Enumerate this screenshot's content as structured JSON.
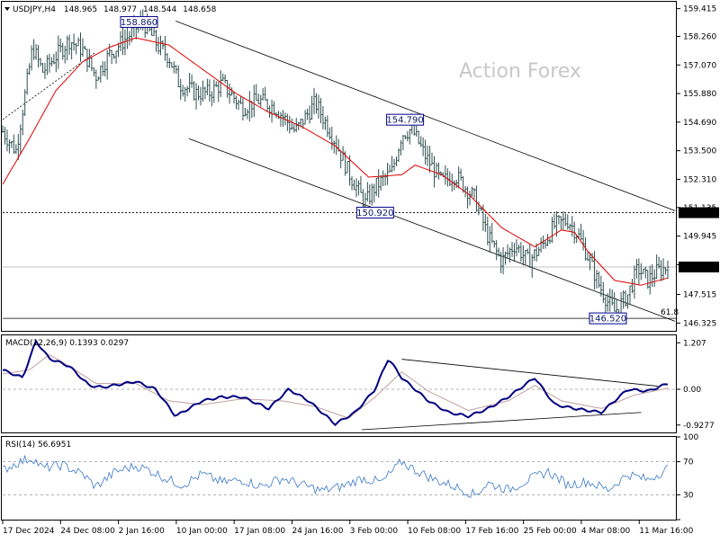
{
  "chart_data": {
    "type": "candlestick",
    "title": "USDJPY,H4",
    "ohlc_header": {
      "symbol": "USDJPY,H4",
      "values": [
        "148.965",
        "148.977",
        "148.544",
        "148.658"
      ]
    },
    "watermark": "Action Forex",
    "price_axis": {
      "ylim": [
        146.0,
        159.7
      ],
      "ticks": [
        "159.415",
        "158.260",
        "157.070",
        "155.880",
        "154.690",
        "153.500",
        "152.310",
        "151.135",
        "149.945",
        "148.755",
        "147.515",
        "146.325"
      ],
      "tick_values": [
        159.415,
        158.26,
        157.07,
        155.88,
        154.69,
        153.5,
        152.31,
        151.135,
        149.945,
        148.755,
        147.515,
        146.325
      ]
    },
    "current_price": {
      "label": "148.658",
      "value": 148.658
    },
    "level_150920": {
      "label": "150.920",
      "value": 150.92
    },
    "level_146520": {
      "value": 146.52
    },
    "fib_label": "61.8",
    "annotations": [
      {
        "label": "158.860",
        "value": 158.86,
        "t": 0.205
      },
      {
        "label": "154.790",
        "value": 154.79,
        "t": 0.605
      },
      {
        "label": "150.920",
        "value": 150.92,
        "t": 0.56
      },
      {
        "label": "146.520",
        "value": 146.52,
        "t": 0.91
      }
    ],
    "channel_upper": {
      "t": [
        0.26,
        1.0
      ],
      "v": [
        158.9,
        151.0
      ]
    },
    "channel_lower": {
      "t": [
        0.28,
        1.0
      ],
      "v": [
        154.0,
        146.4
      ]
    },
    "trendline_early": {
      "t": [
        0.0,
        0.14
      ],
      "v": [
        154.8,
        157.6
      ]
    },
    "price_keypoints": {
      "t": [
        0.0,
        0.02,
        0.045,
        0.06,
        0.085,
        0.1,
        0.12,
        0.14,
        0.16,
        0.19,
        0.21,
        0.235,
        0.25,
        0.265,
        0.29,
        0.31,
        0.33,
        0.36,
        0.385,
        0.41,
        0.44,
        0.47,
        0.5,
        0.52,
        0.545,
        0.56,
        0.585,
        0.6,
        0.615,
        0.635,
        0.66,
        0.68,
        0.71,
        0.73,
        0.75,
        0.77,
        0.79,
        0.81,
        0.83,
        0.85,
        0.865,
        0.88,
        0.895,
        0.91,
        0.92,
        0.94,
        0.955,
        0.97,
        0.985,
        1.0
      ],
      "v": [
        154.3,
        153.5,
        157.8,
        156.8,
        157.6,
        158.1,
        157.7,
        156.6,
        157.5,
        158.3,
        158.9,
        157.8,
        157.4,
        156.3,
        155.9,
        155.9,
        156.3,
        155.3,
        155.6,
        155.3,
        154.3,
        155.5,
        153.9,
        152.6,
        151.3,
        152.0,
        152.6,
        154.2,
        154.4,
        153.3,
        152.2,
        152.5,
        151.5,
        149.9,
        148.9,
        149.6,
        148.9,
        149.5,
        150.4,
        150.6,
        150.0,
        149.1,
        148.0,
        147.2,
        146.8,
        147.5,
        148.6,
        148.1,
        148.5,
        148.658
      ]
    },
    "ma_keypoints": {
      "t": [
        0.0,
        0.04,
        0.08,
        0.12,
        0.16,
        0.2,
        0.25,
        0.3,
        0.35,
        0.4,
        0.45,
        0.5,
        0.55,
        0.6,
        0.62,
        0.66,
        0.7,
        0.75,
        0.8,
        0.84,
        0.86,
        0.88,
        0.92,
        0.96,
        1.0
      ],
      "v": [
        152.1,
        154.0,
        156.0,
        157.2,
        157.8,
        158.2,
        157.9,
        156.9,
        155.9,
        155.1,
        154.5,
        153.7,
        152.4,
        152.5,
        152.9,
        152.5,
        151.7,
        150.3,
        149.5,
        150.2,
        150.1,
        149.3,
        148.1,
        147.9,
        148.2
      ]
    },
    "macd": {
      "label": "MACD(12,26,9) 0.1393 0.0297",
      "ylim": [
        -1.12,
        1.4
      ],
      "ticks": [
        "1.207",
        "0.00",
        "-0.9277"
      ],
      "tick_values": [
        1.207,
        0.0,
        -0.9277
      ],
      "line_keypoints": {
        "t": [
          0.0,
          0.03,
          0.05,
          0.07,
          0.1,
          0.13,
          0.15,
          0.2,
          0.23,
          0.26,
          0.3,
          0.33,
          0.36,
          0.4,
          0.43,
          0.46,
          0.5,
          0.53,
          0.56,
          0.58,
          0.6,
          0.64,
          0.67,
          0.7,
          0.73,
          0.76,
          0.8,
          0.83,
          0.86,
          0.9,
          0.94,
          0.97,
          1.0
        ],
        "v": [
          0.5,
          0.3,
          1.25,
          0.8,
          0.6,
          0.1,
          0.05,
          0.2,
          0.0,
          -0.7,
          -0.3,
          -0.2,
          -0.2,
          -0.5,
          0.0,
          -0.3,
          -0.9,
          -0.6,
          0.0,
          0.8,
          0.3,
          -0.3,
          -0.6,
          -0.7,
          -0.5,
          -0.2,
          0.3,
          -0.4,
          -0.5,
          -0.6,
          0.0,
          -0.05,
          0.15
        ]
      },
      "signal_keypoints": {
        "t": [
          0.0,
          0.04,
          0.07,
          0.1,
          0.14,
          0.2,
          0.25,
          0.3,
          0.36,
          0.42,
          0.47,
          0.52,
          0.56,
          0.6,
          0.64,
          0.7,
          0.76,
          0.8,
          0.84,
          0.9,
          0.95,
          1.0
        ],
        "v": [
          0.4,
          0.5,
          0.9,
          0.6,
          0.15,
          0.15,
          -0.3,
          -0.4,
          -0.25,
          -0.3,
          -0.45,
          -0.75,
          -0.2,
          0.45,
          -0.05,
          -0.55,
          -0.3,
          0.1,
          -0.3,
          -0.5,
          -0.15,
          0.03
        ]
      },
      "trend_upper": {
        "t": [
          0.6,
          0.985
        ],
        "v": [
          0.78,
          0.08
        ]
      },
      "trend_lower": {
        "t": [
          0.54,
          0.96
        ],
        "v": [
          -1.05,
          -0.6
        ]
      }
    },
    "rsi": {
      "label": "RSI(14) 56.6951",
      "ylim": [
        0,
        100
      ],
      "ticks": [
        "100",
        "70",
        "30",
        "0"
      ],
      "tick_values": [
        100,
        70,
        30,
        0
      ],
      "keypoints": {
        "t": [
          0.0,
          0.02,
          0.045,
          0.06,
          0.09,
          0.12,
          0.14,
          0.17,
          0.2,
          0.22,
          0.25,
          0.27,
          0.3,
          0.33,
          0.36,
          0.39,
          0.42,
          0.45,
          0.48,
          0.51,
          0.54,
          0.57,
          0.6,
          0.62,
          0.65,
          0.68,
          0.71,
          0.73,
          0.76,
          0.79,
          0.82,
          0.85,
          0.88,
          0.91,
          0.94,
          0.97,
          1.0
        ],
        "v": [
          60,
          68,
          75,
          62,
          66,
          55,
          40,
          58,
          65,
          60,
          48,
          42,
          55,
          45,
          48,
          40,
          50,
          42,
          35,
          40,
          50,
          45,
          70,
          60,
          48,
          40,
          30,
          44,
          36,
          48,
          58,
          42,
          46,
          36,
          55,
          48,
          62
        ]
      }
    },
    "x_axis": {
      "ticks": [
        "17 Dec 2024",
        "24 Dec 08:00",
        "2 Jan 16:00",
        "10 Jan 00:00",
        "17 Jan 08:00",
        "24 Jan 16:00",
        "3 Feb 00:00",
        "10 Feb 08:00",
        "17 Feb 16:00",
        "25 Feb 00:00",
        "4 Mar 08:00",
        "11 Mar 16:00"
      ],
      "tick_positions": [
        0.0,
        0.087,
        0.174,
        0.261,
        0.348,
        0.435,
        0.522,
        0.609,
        0.696,
        0.783,
        0.87,
        0.957
      ]
    },
    "colors": {
      "candle": "#2f4f4f",
      "ma": "#e00000",
      "macd_line": "#000080",
      "signal_line": "#c0a0a0",
      "rsi_line": "#3a78c9",
      "grid": "#999999",
      "label_box_border": "#00008b"
    }
  }
}
